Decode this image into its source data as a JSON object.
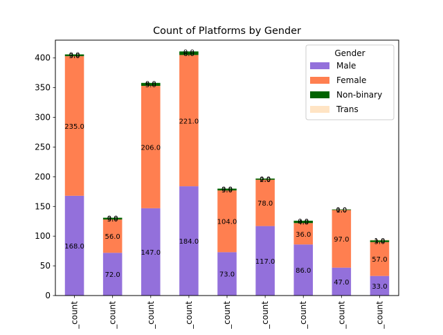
{
  "chart_data": {
    "type": "bar",
    "stacked": true,
    "title": "Count of Platforms by Gender",
    "xlabel": "",
    "ylabel": "",
    "categories": [
      "_count",
      "_count",
      "_count",
      "_count",
      "_count",
      "_count",
      "_count",
      "_count",
      "_count"
    ],
    "ylim": [
      0,
      430
    ],
    "yticks": [
      0,
      50,
      100,
      150,
      200,
      250,
      300,
      350,
      400
    ],
    "grid": false,
    "legend": {
      "title": "Gender",
      "placement": "upper right"
    },
    "series": [
      {
        "name": "Male",
        "color": "#9370DB",
        "values": [
          168,
          72,
          147,
          184,
          73,
          117,
          86,
          47,
          33
        ],
        "labels": [
          "168.0",
          "72.0",
          "147.0",
          "184.0",
          "73.0",
          "117.0",
          "86.0",
          "47.0",
          "33.0"
        ]
      },
      {
        "name": "Female",
        "color": "#FF7F50",
        "values": [
          235,
          56,
          206,
          221,
          104,
          78,
          36,
          97,
          57
        ],
        "labels": [
          "235.0",
          "56.0",
          "206.0",
          "221.0",
          "104.0",
          "78.0",
          "36.0",
          "97.0",
          "57.0"
        ]
      },
      {
        "name": "Non-binary",
        "color": "#006400",
        "values": [
          3,
          3,
          5,
          6,
          3,
          2,
          4,
          1,
          3
        ],
        "labels": [
          "3.0",
          "3.0",
          "5.0",
          "6.0",
          "3.0",
          "2.0",
          "4.0",
          "1.0",
          "3.0"
        ]
      },
      {
        "name": "Trans",
        "color": "#FFE4C4",
        "values": [
          0,
          0,
          0,
          0,
          0,
          0,
          0,
          0,
          1
        ],
        "labels": [
          "0.0",
          "0.0",
          "0.0",
          "0.0",
          "0.0",
          "0.0",
          "0.0",
          "0.0",
          "1.0"
        ]
      }
    ]
  }
}
